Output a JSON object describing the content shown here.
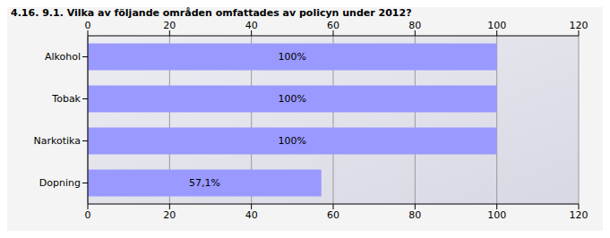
{
  "chart_data": {
    "type": "bar",
    "title": "4.16. 9.1. Vilka av följande områden omfattades av policyn under 2012?",
    "orientation": "horizontal",
    "categories": [
      "Alkohol",
      "Tobak",
      "Narkotika",
      "Dopning"
    ],
    "values": [
      100,
      100,
      100,
      57.1
    ],
    "value_labels": [
      "100%",
      "100%",
      "100%",
      "57,1%"
    ],
    "data_labels": true,
    "color": "#9999ff",
    "xlim": [
      0,
      120
    ],
    "xticks": [
      0,
      20,
      40,
      60,
      80,
      100,
      120
    ],
    "grid": true
  }
}
